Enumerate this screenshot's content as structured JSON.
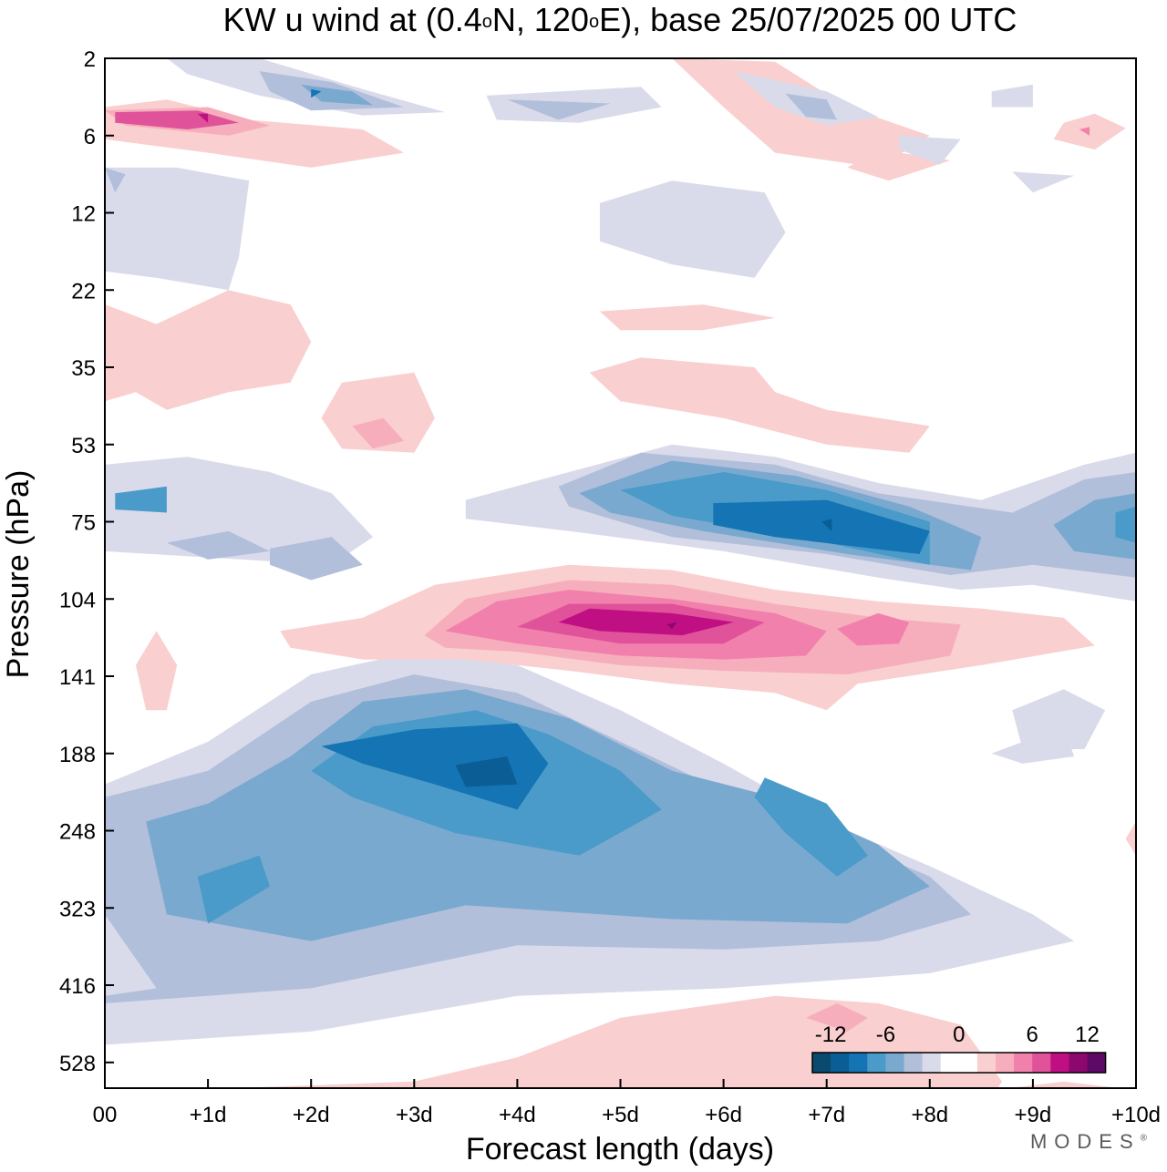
{
  "title": {
    "text_before_lat": "KW u wind at (0.4",
    "lat_unit": "o",
    "text_before_lon": "N, 120",
    "lon_unit": "o",
    "text_after": "E),  base 25/07/2025  00 UTC"
  },
  "brand": {
    "name": "MODES",
    "mark": "®"
  },
  "colors": {
    "neg": [
      "#0b4a6f",
      "#0a5e95",
      "#1474b4",
      "#4a9bc9",
      "#7aa9cf",
      "#b1bfdb",
      "#dadbea"
    ],
    "zero": "#ffffff",
    "pos": [
      "#f9cfcf",
      "#f6aebd",
      "#f280ad",
      "#e0529a",
      "#bf0f83",
      "#8d086e",
      "#5d0a66"
    ]
  },
  "chart_data": {
    "type": "heatmap",
    "title": "KW u wind at (0.4°N, 120°E),  base 25/07/2025  00 UTC",
    "xlabel": "Forecast length (days)",
    "ylabel": "Pressure (hPa)",
    "xlim": [
      0,
      10
    ],
    "x_tick_values": [
      0,
      1,
      2,
      3,
      4,
      5,
      6,
      7,
      8,
      9,
      10
    ],
    "x_tick_labels": [
      "00",
      "+1d",
      "+2d",
      "+3d",
      "+4d",
      "+5d",
      "+6d",
      "+7d",
      "+8d",
      "+9d",
      "+10d"
    ],
    "y_levels_hPa": [
      2,
      6,
      12,
      22,
      35,
      53,
      75,
      104,
      141,
      188,
      248,
      323,
      416,
      528
    ],
    "y_tick_labels": [
      "2",
      "6",
      "12",
      "22",
      "35",
      "53",
      "75",
      "104",
      "141",
      "188",
      "248",
      "323",
      "416",
      "528"
    ],
    "y_range_hPa": [
      2,
      650
    ],
    "contour_interval_ms": 2,
    "colorbar": {
      "levels": [
        -14,
        -12,
        -10,
        -8,
        -6,
        -4,
        -2,
        2,
        4,
        6,
        8,
        10,
        12,
        14
      ],
      "tick_labels": [
        "-12",
        "-6",
        "0",
        "6",
        "12"
      ],
      "tick_values": [
        -12,
        -6,
        0,
        6,
        12
      ],
      "location": "lower-right"
    },
    "features": [
      {
        "name": "upper-trop easterly max",
        "sign": "neg",
        "day_center": 3.8,
        "p_center_hPa": 200,
        "peak_ms": -14
      },
      {
        "name": "lower-strat westerly max",
        "sign": "pos",
        "day_center": 5.5,
        "p_center_hPa": 120,
        "peak_ms": 12
      },
      {
        "name": "strat easterly band",
        "sign": "neg",
        "day_center": 6.5,
        "p_center_hPa": 75,
        "peak_ms": -12
      },
      {
        "name": "mid-trop easterly",
        "sign": "neg",
        "day_center": 1.2,
        "p_center_hPa": 300,
        "peak_ms": -8
      },
      {
        "name": "upper strat westerly",
        "sign": "pos",
        "day_center": 1.0,
        "p_center_hPa": 5,
        "peak_ms": 10
      },
      {
        "name": "upper strat easterly",
        "sign": "neg",
        "day_center": 2.0,
        "p_center_hPa": 3,
        "peak_ms": -10
      },
      {
        "name": "mid-trop westerly",
        "sign": "pos",
        "day_center": 6.5,
        "p_center_hPa": 450,
        "peak_ms": 4
      },
      {
        "name": "lower-trop westerly",
        "sign": "pos",
        "day_center": 1.5,
        "p_center_hPa": 600,
        "peak_ms": 6
      }
    ]
  }
}
